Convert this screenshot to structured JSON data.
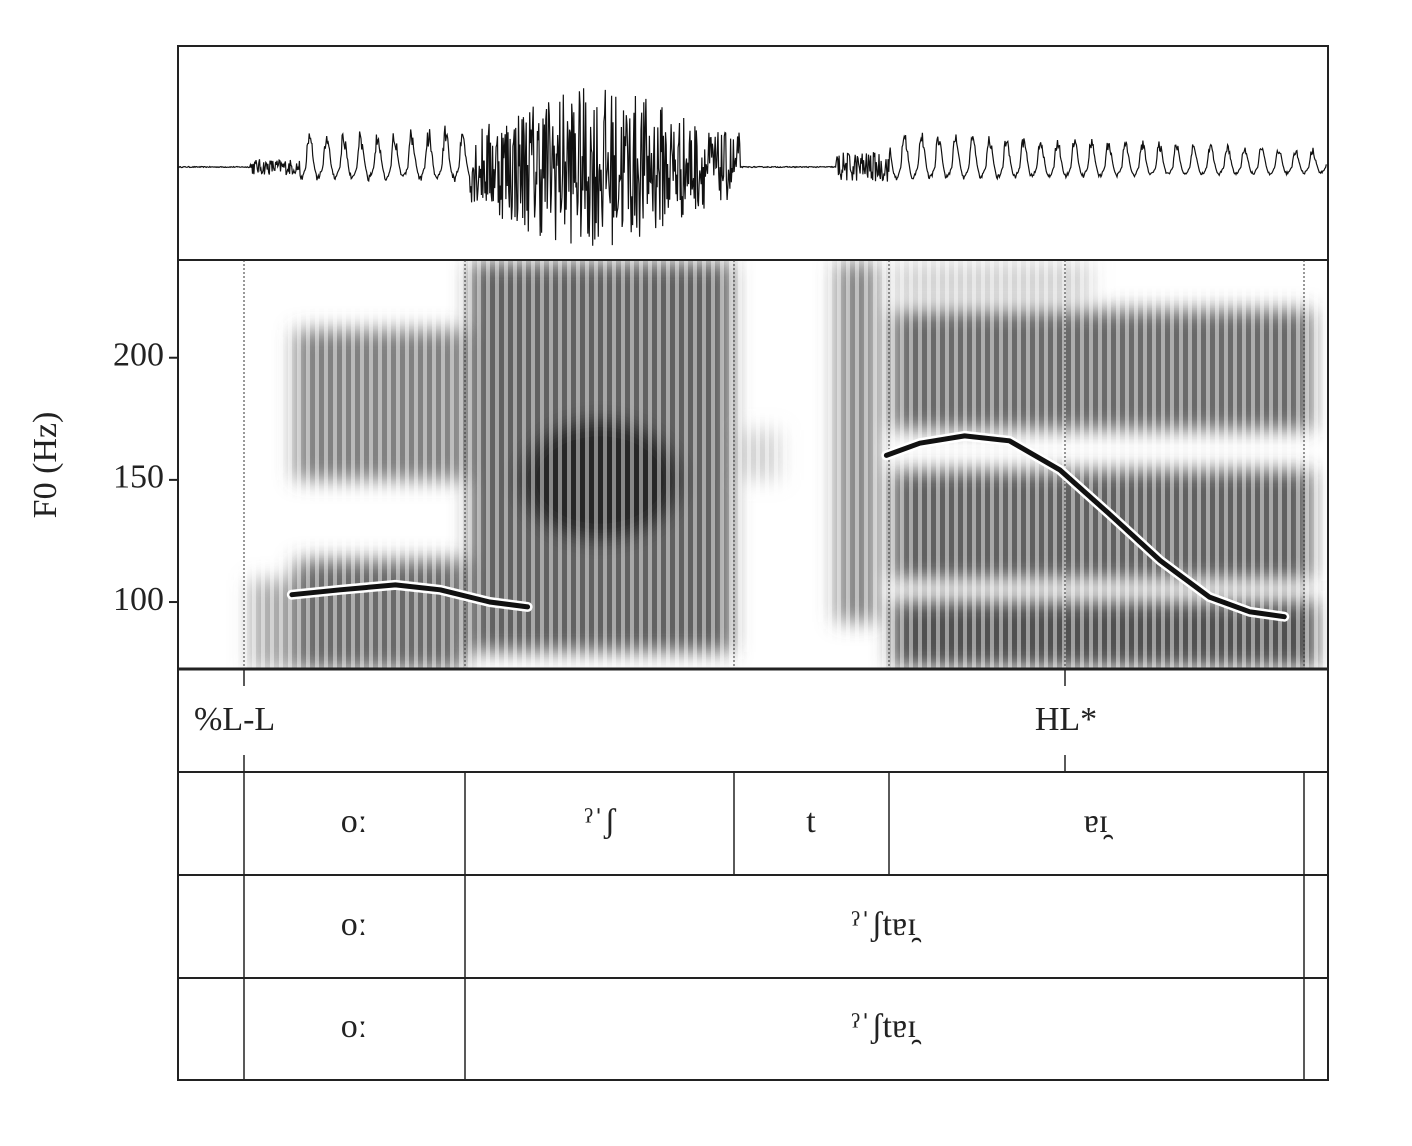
{
  "chart_data": {
    "type": "line",
    "y_label": "F0 (Hz)",
    "ylim": [
      73,
      240
    ],
    "yticks": [
      100,
      150,
      200
    ],
    "xlim": [
      0,
      1
    ],
    "x": [
      0.099,
      0.141,
      0.189,
      0.228,
      0.271,
      0.304,
      0.5,
      0.616,
      0.645,
      0.684,
      0.723,
      0.767,
      0.81,
      0.854,
      0.897,
      0.932,
      0.962
    ],
    "series": [
      {
        "color": "#111111",
        "values": [
          103,
          105,
          107,
          105,
          100,
          98,
          null,
          160,
          165,
          168,
          166,
          154,
          136,
          117,
          102,
          96,
          94
        ]
      }
    ],
    "tiers": [
      [
        "%L-L",
        "HL*"
      ],
      [
        "oː",
        "ˀˈʃ",
        "t",
        "ɐɪ̯"
      ],
      [
        "oː",
        "ˀˈʃtɐɪ̯"
      ],
      [
        "oː",
        "ˀˈʃtɐɪ̯"
      ]
    ]
  }
}
